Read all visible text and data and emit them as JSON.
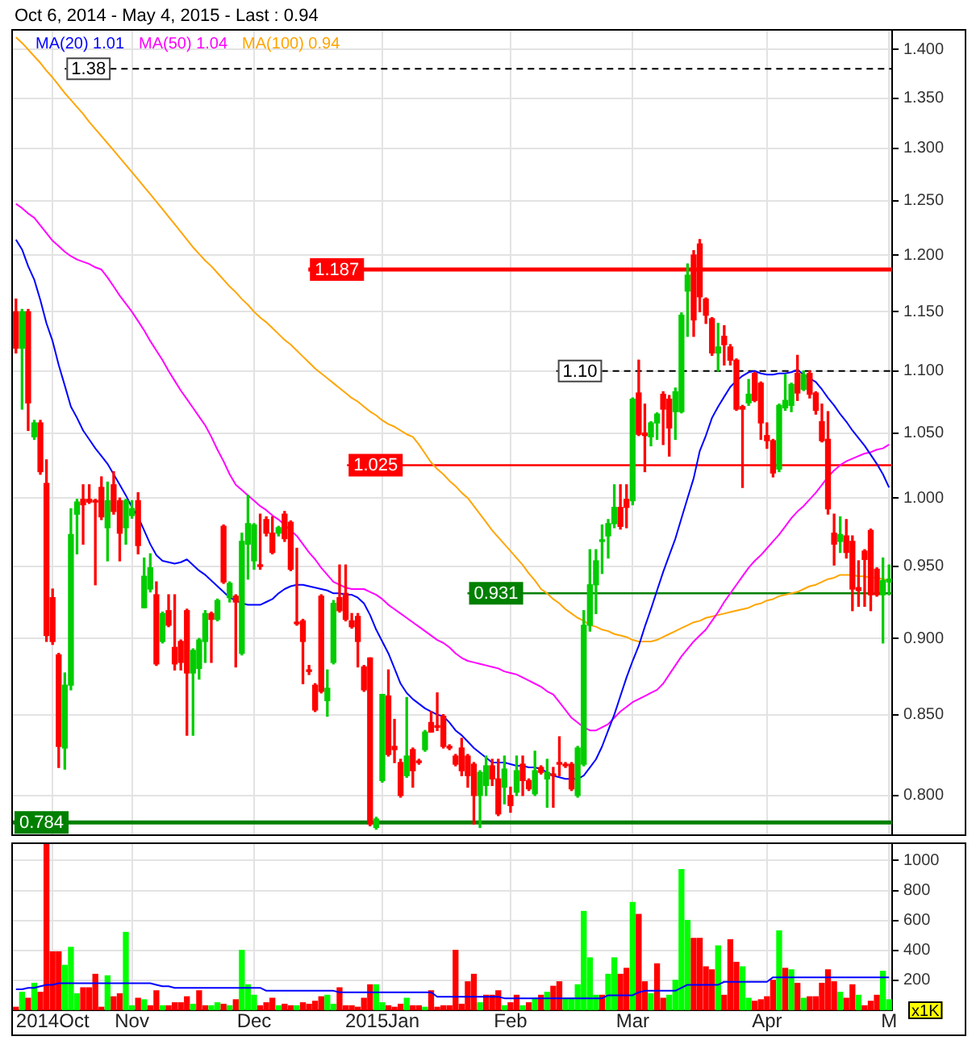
{
  "chart_data": [
    {
      "type": "candlestick",
      "title": "Oct 6, 2014 - May 4, 2015 - Last : 0.94",
      "categories": [
        null,
        null,
        null,
        null,
        null,
        null,
        null,
        null,
        null,
        null,
        null,
        null,
        null,
        null,
        null,
        null,
        null,
        null,
        null,
        null,
        null,
        null,
        null,
        null,
        null,
        null,
        null,
        null,
        null,
        null,
        null,
        null,
        null,
        null,
        null,
        null,
        null,
        null,
        null,
        null,
        null,
        null,
        null,
        null,
        null,
        null,
        null,
        null,
        null,
        null,
        null,
        null,
        null,
        null,
        null,
        null,
        null,
        null,
        null,
        null,
        null,
        null,
        null,
        null,
        null,
        null,
        null,
        null,
        null,
        null,
        null,
        null,
        null,
        null,
        null,
        null,
        null,
        null,
        null,
        null,
        null,
        null,
        null,
        null,
        null,
        null,
        null,
        null,
        null,
        null,
        null,
        null,
        null,
        null,
        null,
        null,
        null,
        null,
        null,
        null,
        null,
        null,
        null,
        null,
        null,
        null,
        null,
        null,
        null,
        null,
        null,
        null,
        null,
        null,
        null,
        null,
        null,
        null,
        null,
        null,
        null,
        null,
        null,
        null,
        null,
        null,
        null,
        null,
        null,
        null,
        null,
        null,
        null,
        null,
        null,
        null,
        null,
        null,
        null,
        null,
        null,
        null,
        null,
        null
      ],
      "ohlc": [
        [
          1.15,
          1.161,
          1.115,
          1.119
        ],
        [
          1.119,
          1.152,
          1.069,
          1.15
        ],
        [
          1.15,
          1.152,
          1.052,
          1.074
        ],
        [
          1.047,
          1.06,
          1.045,
          1.058
        ],
        [
          1.058,
          1.06,
          1.018,
          1.02
        ],
        [
          1.011,
          1.029,
          0.898,
          0.902
        ],
        [
          0.928,
          0.934,
          0.896,
          0.898
        ],
        [
          0.889,
          0.89,
          0.817,
          0.83
        ],
        [
          0.829,
          0.877,
          0.816,
          0.869
        ],
        [
          0.869,
          0.992,
          0.866,
          0.973
        ],
        [
          0.988,
          0.999,
          0.959,
          0.997
        ],
        [
          0.999,
          1.01,
          0.966,
          0.995
        ],
        [
          0.999,
          1.01,
          0.996,
          0.997
        ],
        [
          0.998,
          0.999,
          0.937,
          0.997
        ],
        [
          1.008,
          1.016,
          0.984,
          0.986
        ],
        [
          0.978,
          1.012,
          0.954,
          0.998
        ],
        [
          1.01,
          1.02,
          0.988,
          0.99
        ],
        [
          0.998,
          1.0,
          0.954,
          0.974
        ],
        [
          0.978,
          0.999,
          0.966,
          0.998
        ],
        [
          0.987,
          0.998,
          0.985,
          0.992
        ],
        [
          0.998,
          1.004,
          0.959,
          0.965
        ],
        [
          0.921,
          0.956,
          0.921,
          0.943
        ],
        [
          0.934,
          0.959,
          0.932,
          0.949
        ],
        [
          0.93,
          0.939,
          0.882,
          0.883
        ],
        [
          0.898,
          0.918,
          0.897,
          0.917
        ],
        [
          0.919,
          0.93,
          0.908,
          0.909
        ],
        [
          0.894,
          0.93,
          0.879,
          0.883
        ],
        [
          0.898,
          0.899,
          0.879,
          0.884
        ],
        [
          0.919,
          0.92,
          0.837,
          0.877
        ],
        [
          0.877,
          0.893,
          0.837,
          0.892
        ],
        [
          0.88,
          0.9,
          0.873,
          0.899
        ],
        [
          0.898,
          0.919,
          0.884,
          0.917
        ],
        [
          0.917,
          0.918,
          0.884,
          0.913
        ],
        [
          0.913,
          0.927,
          0.912,
          0.926
        ],
        [
          0.979,
          0.98,
          0.938,
          0.939
        ],
        [
          0.928,
          0.939,
          0.925,
          0.938
        ],
        [
          0.929,
          0.93,
          0.881,
          0.925
        ],
        [
          0.89,
          0.974,
          0.889,
          0.968
        ],
        [
          0.966,
          1.002,
          0.941,
          0.981
        ],
        [
          0.954,
          0.981,
          0.948,
          0.98
        ],
        [
          0.951,
          0.988,
          0.948,
          0.95
        ],
        [
          0.984,
          0.986,
          0.972,
          0.974
        ],
        [
          0.974,
          0.986,
          0.959,
          0.96
        ],
        [
          0.974,
          0.979,
          0.972,
          0.978
        ],
        [
          0.988,
          0.99,
          0.968,
          0.97
        ],
        [
          0.982,
          0.983,
          0.947,
          0.948
        ],
        [
          0.911,
          0.963,
          0.909,
          0.91
        ],
        [
          0.912,
          0.913,
          0.87,
          0.898
        ],
        [
          0.879,
          0.882,
          0.876,
          0.878
        ],
        [
          0.869,
          0.87,
          0.852,
          0.853
        ],
        [
          0.929,
          0.93,
          0.864,
          0.865
        ],
        [
          0.859,
          0.879,
          0.849,
          0.867
        ],
        [
          0.884,
          0.926,
          0.883,
          0.924
        ],
        [
          0.928,
          0.951,
          0.918,
          0.919
        ],
        [
          0.931,
          0.951,
          0.912,
          0.913
        ],
        [
          0.912,
          0.917,
          0.907,
          0.908
        ],
        [
          0.915,
          0.917,
          0.881,
          0.898
        ],
        [
          0.881,
          0.882,
          0.865,
          0.866
        ],
        [
          0.887,
          0.887,
          0.782,
          0.783
        ],
        [
          0.781,
          0.787,
          0.78,
          0.786
        ],
        [
          0.809,
          0.863,
          0.808,
          0.863
        ],
        [
          0.862,
          0.879,
          0.824,
          0.825
        ],
        [
          0.83,
          0.847,
          0.82,
          0.828
        ],
        [
          0.82,
          0.822,
          0.799,
          0.8
        ],
        [
          0.812,
          0.861,
          0.811,
          0.824
        ],
        [
          0.828,
          0.829,
          0.805,
          0.815
        ],
        [
          0.821,
          0.822,
          0.819,
          0.82
        ],
        [
          0.828,
          0.84,
          0.827,
          0.839
        ],
        [
          0.845,
          0.852,
          0.839,
          0.839
        ],
        [
          0.843,
          0.864,
          0.84,
          0.842
        ],
        [
          0.849,
          0.85,
          0.829,
          0.83
        ],
        [
          0.83,
          0.831,
          0.828,
          0.829
        ],
        [
          0.824,
          0.825,
          0.818,
          0.819
        ],
        [
          0.829,
          0.835,
          0.812,
          0.815
        ],
        [
          0.824,
          0.825,
          0.805,
          0.812
        ],
        [
          0.819,
          0.82,
          0.783,
          0.8
        ],
        [
          0.8,
          0.815,
          0.781,
          0.814
        ],
        [
          0.806,
          0.824,
          0.8,
          0.818
        ],
        [
          0.818,
          0.822,
          0.806,
          0.81
        ],
        [
          0.81,
          0.822,
          0.788,
          0.789
        ],
        [
          0.805,
          0.824,
          0.795,
          0.816
        ],
        [
          0.8,
          0.805,
          0.79,
          0.794
        ],
        [
          0.802,
          0.824,
          0.8,
          0.815
        ],
        [
          0.819,
          0.824,
          0.8,
          0.809
        ],
        [
          0.809,
          0.81,
          0.803,
          0.804
        ],
        [
          0.801,
          0.827,
          0.8,
          0.815
        ],
        [
          0.817,
          0.818,
          0.813,
          0.814
        ],
        [
          0.81,
          0.822,
          0.793,
          0.814
        ],
        [
          0.813,
          0.817,
          0.793,
          0.812
        ],
        [
          0.82,
          0.836,
          0.812,
          0.819
        ],
        [
          0.819,
          0.82,
          0.817,
          0.818
        ],
        [
          0.819,
          0.82,
          0.803,
          0.804
        ],
        [
          0.8,
          0.83,
          0.799,
          0.829
        ],
        [
          0.819,
          0.919,
          0.818,
          0.909
        ],
        [
          0.909,
          0.962,
          0.905,
          0.937
        ],
        [
          0.937,
          0.962,
          0.917,
          0.954
        ],
        [
          0.968,
          0.98,
          0.945,
          0.969
        ],
        [
          0.972,
          0.984,
          0.956,
          0.981
        ],
        [
          0.981,
          1.01,
          0.978,
          0.993
        ],
        [
          0.993,
          1.01,
          0.977,
          0.979
        ],
        [
          0.999,
          1.01,
          0.978,
          0.993
        ],
        [
          0.998,
          1.078,
          0.995,
          1.077
        ],
        [
          1.082,
          1.109,
          1.048,
          1.049
        ],
        [
          1.05,
          1.073,
          1.02,
          1.048
        ],
        [
          1.047,
          1.059,
          1.04,
          1.058
        ],
        [
          1.058,
          1.066,
          1.045,
          1.065
        ],
        [
          1.081,
          1.083,
          1.041,
          1.069
        ],
        [
          1.077,
          1.08,
          1.032,
          1.054
        ],
        [
          1.067,
          1.086,
          1.045,
          1.083
        ],
        [
          1.067,
          1.149,
          1.066,
          1.147
        ],
        [
          1.168,
          1.192,
          1.129,
          1.182
        ],
        [
          1.2,
          1.204,
          1.129,
          1.143
        ],
        [
          1.21,
          1.214,
          1.15,
          1.163
        ],
        [
          1.161,
          1.162,
          1.14,
          1.147
        ],
        [
          1.144,
          1.145,
          1.113,
          1.115
        ],
        [
          1.115,
          1.14,
          1.1,
          1.12
        ],
        [
          1.129,
          1.138,
          1.105,
          1.122
        ],
        [
          1.12,
          1.122,
          1.105,
          1.109
        ],
        [
          1.109,
          1.11,
          1.068,
          1.069
        ],
        [
          1.071,
          1.072,
          1.008,
          1.069
        ],
        [
          1.074,
          1.093,
          1.072,
          1.081
        ],
        [
          1.098,
          1.099,
          1.075,
          1.076
        ],
        [
          1.09,
          1.091,
          1.045,
          1.058
        ],
        [
          1.048,
          1.058,
          1.038,
          1.044
        ],
        [
          1.044,
          1.045,
          1.016,
          1.019
        ],
        [
          1.022,
          1.073,
          1.02,
          1.072
        ],
        [
          1.07,
          1.097,
          1.068,
          1.076
        ],
        [
          1.072,
          1.09,
          1.067,
          1.089
        ],
        [
          1.098,
          1.113,
          1.076,
          1.082
        ],
        [
          1.085,
          1.1,
          1.084,
          1.097
        ],
        [
          1.098,
          1.1,
          1.078,
          1.081
        ],
        [
          1.082,
          1.083,
          1.065,
          1.068
        ],
        [
          1.059,
          1.073,
          1.043,
          1.044
        ],
        [
          1.045,
          1.067,
          0.988,
          0.992
        ],
        [
          0.974,
          0.988,
          0.951,
          0.966
        ],
        [
          0.968,
          0.986,
          0.96,
          0.973
        ],
        [
          0.972,
          0.984,
          0.956,
          0.96
        ],
        [
          0.968,
          0.972,
          0.919,
          0.934
        ],
        [
          0.935,
          0.954,
          0.922,
          0.933
        ],
        [
          0.961,
          0.962,
          0.922,
          0.955
        ],
        [
          0.976,
          0.977,
          0.919,
          0.93
        ],
        [
          0.948,
          0.949,
          0.929,
          0.93
        ],
        [
          0.93,
          0.956,
          0.897,
          0.94
        ],
        [
          0.939,
          0.951,
          0.93,
          0.941
        ]
      ],
      "colors": [
        "#ff0000",
        "#00cc00",
        "#ff0000",
        "#00cc00",
        "#ff0000",
        "#ff0000",
        "#ff0000",
        "#ff0000",
        "#00cc00",
        "#00cc00",
        "#00cc00",
        "#ff0000",
        "#ff0000",
        "#ff0000",
        "#ff0000",
        "#00cc00",
        "#ff0000",
        "#ff0000",
        "#00cc00",
        "#00cc00",
        "#ff0000",
        "#00cc00",
        "#00cc00",
        "#ff0000",
        "#00cc00",
        "#ff0000",
        "#ff0000",
        "#ff0000",
        "#ff0000",
        "#00cc00",
        "#00cc00",
        "#00cc00",
        "#ff0000",
        "#00cc00",
        "#ff0000",
        "#00cc00",
        "#ff0000",
        "#00cc00",
        "#00cc00",
        "#00cc00",
        "#ff0000",
        "#ff0000",
        "#ff0000",
        "#00cc00",
        "#ff0000",
        "#ff0000",
        "#ff0000",
        "#ff0000",
        "#ff0000",
        "#ff0000",
        "#ff0000",
        "#00cc00",
        "#00cc00",
        "#ff0000",
        "#ff0000",
        "#ff0000",
        "#ff0000",
        "#ff0000",
        "#ff0000",
        "#00cc00",
        "#00cc00",
        "#ff0000",
        "#ff0000",
        "#ff0000",
        "#00cc00",
        "#ff0000",
        "#ff0000",
        "#00cc00",
        "#ff0000",
        "#ff0000",
        "#ff0000",
        "#ff0000",
        "#ff0000",
        "#ff0000",
        "#ff0000",
        "#ff0000",
        "#00cc00",
        "#00cc00",
        "#ff0000",
        "#ff0000",
        "#00cc00",
        "#ff0000",
        "#00cc00",
        "#ff0000",
        "#ff0000",
        "#00cc00",
        "#ff0000",
        "#00cc00",
        "#ff0000",
        "#ff0000",
        "#ff0000",
        "#ff0000",
        "#00cc00",
        "#00cc00",
        "#00cc00",
        "#00cc00",
        "#00cc00",
        "#00cc00",
        "#00cc00",
        "#ff0000",
        "#ff0000",
        "#00cc00",
        "#ff0000",
        "#ff0000",
        "#00cc00",
        "#00cc00",
        "#ff0000",
        "#ff0000",
        "#00cc00",
        "#00cc00",
        "#00cc00",
        "#ff0000",
        "#ff0000",
        "#ff0000",
        "#ff0000",
        "#00cc00",
        "#ff0000",
        "#ff0000",
        "#ff0000",
        "#ff0000",
        "#00cc00",
        "#ff0000",
        "#ff0000",
        "#ff0000",
        "#ff0000",
        "#00cc00",
        "#00cc00",
        "#00cc00",
        "#ff0000",
        "#00cc00",
        "#ff0000",
        "#ff0000",
        "#ff0000",
        "#ff0000",
        "#ff0000",
        "#00cc00",
        "#ff0000",
        "#ff0000",
        "#ff0000",
        "#ff0000",
        "#ff0000",
        "#ff0000",
        "#00cc00",
        "#00cc00"
      ],
      "series": [
        {
          "type": "line",
          "name": "MA(20) 1.01",
          "color": "#0000ff",
          "values": [
            1.214,
            1.205,
            1.19,
            1.178,
            1.16,
            1.14,
            1.125,
            1.105,
            1.088,
            1.071,
            1.062,
            1.052,
            1.045,
            1.038,
            1.032,
            1.026,
            1.018,
            1.01,
            1.002,
            0.993,
            0.986,
            0.976,
            0.966,
            0.958,
            0.954,
            0.953,
            0.952,
            0.953,
            0.955,
            0.951,
            0.947,
            0.944,
            0.94,
            0.936,
            0.932,
            0.928,
            0.926,
            0.924,
            0.923,
            0.923,
            0.923,
            0.925,
            0.927,
            0.931,
            0.934,
            0.936,
            0.937,
            0.937,
            0.936,
            0.935,
            0.934,
            0.933,
            0.931,
            0.931,
            0.93,
            0.93,
            0.928,
            0.924,
            0.916,
            0.906,
            0.898,
            0.89,
            0.88,
            0.87,
            0.864,
            0.86,
            0.857,
            0.854,
            0.852,
            0.85,
            0.849,
            0.845,
            0.84,
            0.837,
            0.833,
            0.829,
            0.826,
            0.823,
            0.82,
            0.82,
            0.82,
            0.819,
            0.818,
            0.818,
            0.817,
            0.817,
            0.816,
            0.814,
            0.812,
            0.811,
            0.81,
            0.81,
            0.81,
            0.812,
            0.817,
            0.822,
            0.83,
            0.84,
            0.85,
            0.862,
            0.874,
            0.885,
            0.895,
            0.908,
            0.92,
            0.933,
            0.946,
            0.958,
            0.97,
            0.985,
            1.0,
            1.015,
            1.036,
            1.048,
            1.062,
            1.071,
            1.079,
            1.087,
            1.092,
            1.096,
            1.099,
            1.1,
            1.098,
            1.097,
            1.097,
            1.098,
            1.098,
            1.099,
            1.101,
            1.097,
            1.094,
            1.091,
            1.085,
            1.078,
            1.072,
            1.065,
            1.059,
            1.052,
            1.046,
            1.04,
            1.033,
            1.026,
            1.018,
            1.008
          ]
        },
        {
          "type": "line",
          "name": "MA(50) 1.04",
          "color": "#ff00ff",
          "values": [
            1.247,
            1.243,
            1.238,
            1.234,
            1.227,
            1.22,
            1.213,
            1.208,
            1.203,
            1.199,
            1.196,
            1.194,
            1.192,
            1.189,
            1.187,
            1.18,
            1.172,
            1.164,
            1.157,
            1.15,
            1.142,
            1.134,
            1.125,
            1.117,
            1.109,
            1.1,
            1.092,
            1.084,
            1.077,
            1.07,
            1.063,
            1.056,
            1.047,
            1.037,
            1.028,
            1.018,
            1.01,
            1.006,
            1.002,
            0.998,
            0.994,
            0.991,
            0.987,
            0.984,
            0.98,
            0.976,
            0.972,
            0.966,
            0.96,
            0.955,
            0.949,
            0.944,
            0.939,
            0.937,
            0.935,
            0.934,
            0.934,
            0.934,
            0.932,
            0.93,
            0.927,
            0.923,
            0.92,
            0.917,
            0.914,
            0.911,
            0.908,
            0.905,
            0.902,
            0.899,
            0.897,
            0.894,
            0.89,
            0.887,
            0.885,
            0.884,
            0.883,
            0.882,
            0.881,
            0.88,
            0.878,
            0.877,
            0.876,
            0.874,
            0.872,
            0.87,
            0.868,
            0.865,
            0.863,
            0.858,
            0.853,
            0.848,
            0.845,
            0.842,
            0.84,
            0.84,
            0.842,
            0.844,
            0.848,
            0.852,
            0.855,
            0.858,
            0.86,
            0.862,
            0.864,
            0.866,
            0.87,
            0.876,
            0.882,
            0.888,
            0.893,
            0.898,
            0.902,
            0.906,
            0.912,
            0.918,
            0.925,
            0.931,
            0.937,
            0.943,
            0.949,
            0.954,
            0.958,
            0.963,
            0.968,
            0.973,
            0.979,
            0.985,
            0.99,
            0.994,
            0.999,
            1.004,
            1.01,
            1.016,
            1.021,
            1.025,
            1.028,
            1.03,
            1.032,
            1.034,
            1.035,
            1.037,
            1.038,
            1.041
          ]
        },
        {
          "type": "line",
          "name": "MA(100) 0.94",
          "color": "#ffa500",
          "values": [
            1.413,
            1.407,
            1.4,
            1.393,
            1.386,
            1.378,
            1.371,
            1.363,
            1.355,
            1.348,
            1.341,
            1.334,
            1.326,
            1.319,
            1.312,
            1.305,
            1.298,
            1.291,
            1.284,
            1.277,
            1.27,
            1.263,
            1.256,
            1.249,
            1.242,
            1.235,
            1.228,
            1.221,
            1.214,
            1.207,
            1.201,
            1.195,
            1.19,
            1.184,
            1.178,
            1.172,
            1.167,
            1.161,
            1.156,
            1.15,
            1.145,
            1.141,
            1.136,
            1.131,
            1.126,
            1.122,
            1.117,
            1.112,
            1.107,
            1.102,
            1.098,
            1.094,
            1.09,
            1.086,
            1.082,
            1.078,
            1.075,
            1.071,
            1.067,
            1.064,
            1.06,
            1.057,
            1.055,
            1.052,
            1.049,
            1.047,
            1.041,
            1.034,
            1.027,
            1.022,
            1.018,
            1.013,
            1.009,
            1.004,
            1.0,
            0.994,
            0.988,
            0.982,
            0.976,
            0.971,
            0.966,
            0.961,
            0.956,
            0.951,
            0.945,
            0.94,
            0.934,
            0.931,
            0.927,
            0.924,
            0.92,
            0.917,
            0.914,
            0.912,
            0.909,
            0.908,
            0.906,
            0.905,
            0.903,
            0.902,
            0.901,
            0.899,
            0.898,
            0.898,
            0.898,
            0.899,
            0.901,
            0.903,
            0.905,
            0.907,
            0.909,
            0.911,
            0.912,
            0.914,
            0.915,
            0.916,
            0.917,
            0.918,
            0.919,
            0.92,
            0.921,
            0.923,
            0.924,
            0.926,
            0.927,
            0.929,
            0.93,
            0.931,
            0.932,
            0.934,
            0.936,
            0.937,
            0.939,
            0.941,
            0.942,
            0.944,
            0.944,
            0.944,
            0.943,
            0.943,
            0.942,
            0.942,
            0.941,
            0.94
          ]
        }
      ],
      "ylim": [
        0.777,
        1.42
      ],
      "yticks": [
        {
          "value": 0.8,
          "label": "0.800"
        },
        {
          "value": 0.85,
          "label": "0.850"
        },
        {
          "value": 0.9,
          "label": "0.900"
        },
        {
          "value": 0.95,
          "label": "0.950"
        },
        {
          "value": 1.0,
          "label": "1.000"
        },
        {
          "value": 1.05,
          "label": "1.050"
        },
        {
          "value": 1.1,
          "label": "1.100"
        },
        {
          "value": 1.15,
          "label": "1.150"
        },
        {
          "value": 1.2,
          "label": "1.200"
        },
        {
          "value": 1.25,
          "label": "1.250"
        },
        {
          "value": 1.3,
          "label": "1.300"
        },
        {
          "value": 1.35,
          "label": "1.350"
        },
        {
          "value": 1.4,
          "label": "1.400"
        }
      ],
      "log": "y",
      "grid": true,
      "legend": "top left",
      "tick_labels": "y",
      "ref_lines": [
        {
          "axis": "y",
          "value": 1.38,
          "label": "1.38",
          "color": "#000000",
          "line_style": "dashed"
        },
        {
          "axis": "y",
          "value": 1.187,
          "label": "1.187",
          "color": "#ff0000",
          "line_style": "solid"
        },
        {
          "axis": "y",
          "value": 1.1,
          "label": "1.10",
          "color": "#000000",
          "line_style": "dashed"
        },
        {
          "axis": "y",
          "value": 1.025,
          "label": "1.025",
          "color": "#ff0000",
          "line_style": "solid"
        },
        {
          "axis": "y",
          "value": 0.931,
          "label": "0.931",
          "color": "#008000",
          "line_style": "solid"
        },
        {
          "axis": "y",
          "value": 0.784,
          "label": "0.784",
          "color": "#008000",
          "line_style": "solid"
        }
      ]
    },
    {
      "type": "bar",
      "categories": [
        null,
        null,
        null,
        null,
        null,
        null,
        "2014Oct",
        null,
        null,
        null,
        null,
        null,
        null,
        null,
        null,
        null,
        null,
        null,
        null,
        "Nov",
        null,
        null,
        null,
        null,
        null,
        null,
        null,
        null,
        null,
        null,
        null,
        null,
        null,
        null,
        null,
        null,
        null,
        null,
        null,
        "Dec",
        null,
        null,
        null,
        null,
        null,
        null,
        null,
        null,
        null,
        null,
        null,
        null,
        null,
        null,
        null,
        null,
        null,
        null,
        null,
        null,
        "2015Jan",
        null,
        null,
        null,
        null,
        null,
        null,
        null,
        null,
        null,
        null,
        null,
        null,
        null,
        null,
        null,
        null,
        null,
        null,
        null,
        null,
        "Feb",
        null,
        null,
        null,
        null,
        null,
        null,
        null,
        null,
        null,
        null,
        null,
        null,
        null,
        null,
        null,
        null,
        null,
        null,
        null,
        "Mar",
        null,
        null,
        null,
        null,
        null,
        null,
        null,
        null,
        null,
        null,
        null,
        null,
        null,
        null,
        null,
        null,
        null,
        null,
        null,
        null,
        null,
        "Apr",
        null,
        null,
        null,
        null,
        null,
        null,
        null,
        null,
        null,
        null,
        null,
        null,
        null,
        null,
        null,
        null,
        null,
        null,
        null,
        "M"
      ],
      "series": [
        {
          "type": "bar",
          "values": [
            20,
            120,
            80,
            180,
            120,
            1110,
            390,
            390,
            300,
            420,
            110,
            150,
            150,
            240,
            20,
            230,
            90,
            110,
            520,
            30,
            80,
            70,
            30,
            130,
            30,
            30,
            50,
            50,
            90,
            40,
            130,
            30,
            30,
            50,
            40,
            30,
            70,
            400,
            170,
            100,
            30,
            50,
            80,
            30,
            40,
            30,
            30,
            50,
            40,
            60,
            90,
            100,
            40,
            150,
            30,
            30,
            20,
            80,
            170,
            170,
            50,
            30,
            20,
            40,
            80,
            30,
            30,
            20,
            130,
            20,
            30,
            30,
            400,
            40,
            190,
            240,
            50,
            100,
            100,
            130,
            30,
            50,
            100,
            30,
            50,
            80,
            100,
            120,
            160,
            190,
            80,
            80,
            170,
            660,
            350,
            100,
            100,
            240,
            350,
            240,
            280,
            720,
            640,
            190,
            110,
            310,
            80,
            100,
            200,
            940,
            600,
            480,
            480,
            290,
            270,
            430,
            100,
            470,
            320,
            290,
            80,
            60,
            70,
            90,
            200,
            530,
            280,
            270,
            180,
            80,
            90,
            90,
            180,
            270,
            190,
            120,
            80,
            170,
            100,
            30,
            60,
            100,
            260,
            70
          ],
          "colors": [
            "#ff0000",
            "#00ff00",
            "#ff0000",
            "#00ff00",
            "#ff0000",
            "#ff0000",
            "#ff0000",
            "#ff0000",
            "#00ff00",
            "#00ff00",
            "#00ff00",
            "#ff0000",
            "#ff0000",
            "#ff0000",
            "#ff0000",
            "#00ff00",
            "#ff0000",
            "#ff0000",
            "#00ff00",
            "#00ff00",
            "#ff0000",
            "#00ff00",
            "#ff0000",
            "#ff0000",
            "#00ff00",
            "#ff0000",
            "#ff0000",
            "#ff0000",
            "#ff0000",
            "#00ff00",
            "#ff0000",
            "#ff0000",
            "#00ff00",
            "#00ff00",
            "#ff0000",
            "#00ff00",
            "#ff0000",
            "#00ff00",
            "#00ff00",
            "#00ff00",
            "#ff0000",
            "#ff0000",
            "#ff0000",
            "#00ff00",
            "#ff0000",
            "#ff0000",
            "#00ff00",
            "#ff0000",
            "#ff0000",
            "#ff0000",
            "#ff0000",
            "#00ff00",
            "#00ff00",
            "#ff0000",
            "#ff0000",
            "#ff0000",
            "#ff0000",
            "#ff0000",
            "#ff0000",
            "#00ff00",
            "#00ff00",
            "#ff0000",
            "#ff0000",
            "#ff0000",
            "#00ff00",
            "#ff0000",
            "#ff0000",
            "#00ff00",
            "#ff0000",
            "#ff0000",
            "#ff0000",
            "#ff0000",
            "#ff0000",
            "#ff0000",
            "#ff0000",
            "#ff0000",
            "#00ff00",
            "#ff0000",
            "#ff0000",
            "#ff0000",
            "#00ff00",
            "#ff0000",
            "#ff0000",
            "#00ff00",
            "#ff0000",
            "#00ff00",
            "#ff0000",
            "#00ff00",
            "#ff0000",
            "#ff0000",
            "#00ff00",
            "#00ff00",
            "#00ff00",
            "#00ff00",
            "#00ff00",
            "#00ff00",
            "#ff0000",
            "#00ff00",
            "#00ff00",
            "#ff0000",
            "#ff0000",
            "#00ff00",
            "#ff0000",
            "#ff0000",
            "#00ff00",
            "#ff0000",
            "#ff0000",
            "#00ff00",
            "#00ff00",
            "#00ff00",
            "#00ff00",
            "#ff0000",
            "#ff0000",
            "#ff0000",
            "#ff0000",
            "#00ff00",
            "#ff0000",
            "#ff0000",
            "#ff0000",
            "#00ff00",
            "#00ff00",
            "#ff0000",
            "#ff0000",
            "#ff0000",
            "#ff0000",
            "#00ff00",
            "#ff0000",
            "#00ff00",
            "#ff0000",
            "#00ff00",
            "#ff0000",
            "#ff0000",
            "#ff0000",
            "#ff0000",
            "#ff0000",
            "#00ff00",
            "#ff0000",
            "#ff0000",
            "#00ff00",
            "#ff0000",
            "#ff0000",
            "#ff0000",
            "#00ff00",
            "#00ff00"
          ]
        },
        {
          "type": "line",
          "color": "#0000ff",
          "values": [
            140,
            140,
            150,
            150,
            160,
            170,
            170,
            180,
            180,
            180,
            180,
            180,
            180,
            180,
            180,
            180,
            180,
            180,
            180,
            180,
            180,
            180,
            180,
            170,
            160,
            160,
            150,
            150,
            150,
            150,
            150,
            150,
            150,
            150,
            150,
            150,
            150,
            150,
            150,
            150,
            150,
            130,
            130,
            130,
            130,
            130,
            130,
            130,
            130,
            130,
            130,
            130,
            130,
            120,
            120,
            120,
            120,
            120,
            120,
            120,
            120,
            120,
            120,
            120,
            120,
            120,
            120,
            120,
            120,
            90,
            90,
            90,
            90,
            90,
            90,
            90,
            90,
            90,
            90,
            90,
            80,
            80,
            80,
            80,
            80,
            80,
            80,
            80,
            80,
            80,
            80,
            80,
            80,
            80,
            80,
            80,
            80,
            100,
            100,
            100,
            100,
            100,
            120,
            130,
            130,
            130,
            130,
            130,
            130,
            150,
            170,
            170,
            170,
            170,
            170,
            170,
            190,
            190,
            190,
            190,
            190,
            190,
            190,
            190,
            220,
            220,
            220,
            220,
            220,
            220,
            220,
            220,
            220,
            220,
            220,
            220,
            220,
            220,
            220,
            220,
            220,
            220,
            220,
            220
          ]
        }
      ],
      "ylim": [
        0,
        1110
      ],
      "yticks": [
        200,
        400,
        600,
        800,
        1000
      ],
      "ylabel": "x1K",
      "grid": true
    }
  ]
}
